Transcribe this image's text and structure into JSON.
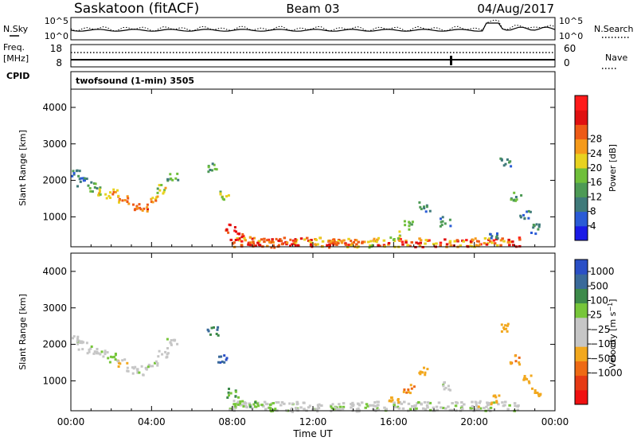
{
  "header": {
    "station": "Saskatoon (fitACF)",
    "beam": "Beam 03",
    "date": "04/Aug/2017"
  },
  "top_panels": {
    "nsky_label": "N.Sky",
    "nsky_ticks": [
      "10^5",
      "10^0"
    ],
    "nsky_right_ticks": [
      "10^5",
      "10^0"
    ],
    "nsearch_label": "N.Search",
    "freq_label": "Freq.",
    "freq_unit": "[MHz]",
    "freq_ticks": [
      "18",
      "8"
    ],
    "nave_ticks": [
      "60",
      "0"
    ],
    "nave_label": "Nave",
    "cpid_label": "CPID",
    "cpid_text": "twofsound (1-min) 3505"
  },
  "colors": {
    "power_scale": [
      "#1a1ae6",
      "#2a5bd6",
      "#3f7a7a",
      "#4d9a55",
      "#6fbf3a",
      "#e8d21f",
      "#f59a1a",
      "#ee5a16",
      "#e01010",
      "#ff1a1a"
    ],
    "velocity_scale": [
      "#2a4fc6",
      "#3a6a9a",
      "#3d8a4a",
      "#77c63a",
      "#c6c6c6",
      "#c6c6c6",
      "#f2a81e",
      "#ee6a14",
      "#e63a14",
      "#f01010"
    ]
  },
  "chart_data": [
    {
      "type": "heatmap",
      "title": "Power",
      "ylabel": "Slant Range [km]",
      "xlabel": "",
      "xlim": [
        "00:00",
        "24:00"
      ],
      "ylim": [
        180,
        4500
      ],
      "y_ticks": [
        1000,
        2000,
        3000,
        4000
      ],
      "colorbar": {
        "label": "Power [dB]",
        "ticks": [
          4,
          8,
          12,
          16,
          20,
          24,
          28
        ]
      },
      "x": [
        0.2,
        0.5,
        1.0,
        1.5,
        2.0,
        2.5,
        3.0,
        3.5,
        4.0,
        4.5,
        5.0,
        7.0,
        7.5,
        7.9,
        8.3,
        9.0,
        10.0,
        11.0,
        12.0,
        13.0,
        14.0,
        15.0,
        16.0,
        16.7,
        17.5,
        18.5,
        20.0,
        21.0,
        21.5,
        22.0,
        22.5,
        23.0
      ],
      "y": [
        2200,
        2000,
        1850,
        1750,
        1650,
        1500,
        1350,
        1300,
        1500,
        1800,
        2100,
        2400,
        1600,
        700,
        450,
        350,
        300,
        300,
        280,
        280,
        300,
        320,
        500,
        800,
        1300,
        900,
        350,
        500,
        2500,
        1600,
        1100,
        700
      ],
      "z": [
        8,
        8,
        12,
        16,
        20,
        22,
        24,
        22,
        20,
        16,
        12,
        12,
        16,
        28,
        28,
        24,
        24,
        26,
        22,
        22,
        20,
        18,
        16,
        12,
        8,
        8,
        20,
        8,
        8,
        12,
        8,
        8
      ]
    },
    {
      "type": "heatmap",
      "title": "Velocity",
      "ylabel": "Slant Range [km]",
      "xlabel": "Time UT",
      "xlim": [
        "00:00",
        "24:00"
      ],
      "ylim": [
        180,
        4500
      ],
      "x_ticks": [
        "00:00",
        "04:00",
        "08:00",
        "12:00",
        "16:00",
        "20:00",
        "00:00"
      ],
      "y_ticks": [
        1000,
        2000,
        3000,
        4000
      ],
      "colorbar": {
        "label": "Velocity [m s^-1]",
        "ticks": [
          1000,
          500,
          100,
          25,
          -25,
          -100,
          -500,
          -1000
        ]
      },
      "x": [
        0.2,
        0.5,
        1.0,
        1.5,
        2.0,
        2.5,
        3.0,
        3.5,
        4.0,
        4.5,
        5.0,
        7.0,
        7.5,
        7.9,
        8.3,
        9.0,
        10.0,
        11.0,
        12.0,
        13.0,
        14.0,
        15.0,
        16.0,
        16.7,
        17.5,
        18.5,
        20.0,
        21.0,
        21.5,
        22.0,
        22.5,
        23.0
      ],
      "y": [
        2200,
        2000,
        1850,
        1750,
        1650,
        1500,
        1350,
        1300,
        1500,
        1800,
        2100,
        2400,
        1600,
        700,
        450,
        350,
        300,
        300,
        280,
        280,
        300,
        320,
        500,
        800,
        1300,
        900,
        350,
        500,
        2500,
        1600,
        1100,
        700
      ],
      "z": [
        0,
        0,
        0,
        0,
        50,
        -100,
        0,
        0,
        0,
        0,
        0,
        500,
        1000,
        100,
        50,
        100,
        60,
        0,
        0,
        20,
        0,
        0,
        -300,
        -500,
        -400,
        0,
        -100,
        -150,
        -400,
        -500,
        -300,
        -200
      ]
    }
  ]
}
